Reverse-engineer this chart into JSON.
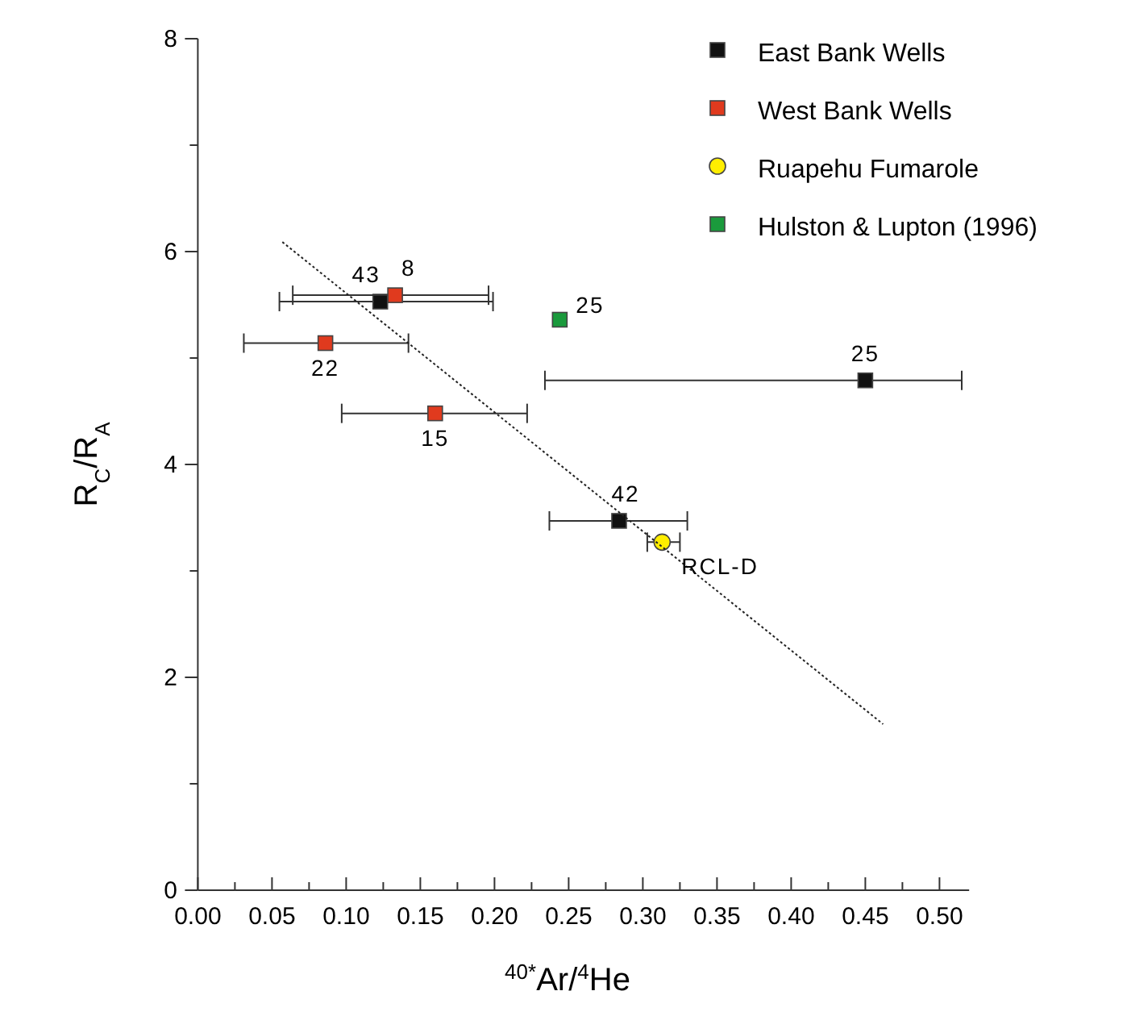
{
  "chart_data": {
    "type": "scatter",
    "xlabel": "$^{40*}$Ar/$^{4}$He",
    "ylabel": "R$_{C}$/R$_{A}$",
    "xlim": [
      0,
      0.52
    ],
    "ylim": [
      0,
      8
    ],
    "xticks": [
      {
        "value": 0,
        "label": "0.00"
      },
      {
        "value": 0.025,
        "label": null
      },
      {
        "value": 0.05,
        "label": "0.05"
      },
      {
        "value": 0.075,
        "label": null
      },
      {
        "value": 0.1,
        "label": "0.10"
      },
      {
        "value": 0.125,
        "label": null
      },
      {
        "value": 0.15,
        "label": "0.15"
      },
      {
        "value": 0.175,
        "label": null
      },
      {
        "value": 0.2,
        "label": "0.20"
      },
      {
        "value": 0.225,
        "label": null
      },
      {
        "value": 0.25,
        "label": "0.25"
      },
      {
        "value": 0.275,
        "label": null
      },
      {
        "value": 0.3,
        "label": "0.30"
      },
      {
        "value": 0.325,
        "label": null
      },
      {
        "value": 0.35,
        "label": "0.35"
      },
      {
        "value": 0.375,
        "label": null
      },
      {
        "value": 0.4,
        "label": "0.40"
      },
      {
        "value": 0.425,
        "label": null
      },
      {
        "value": 0.45,
        "label": "0.45"
      },
      {
        "value": 0.475,
        "label": null
      },
      {
        "value": 0.5,
        "label": "0.50"
      }
    ],
    "yticks": [
      0,
      {
        "value": 1,
        "label": null
      },
      2,
      {
        "value": 3,
        "label": null
      },
      4,
      {
        "value": 5,
        "label": null
      },
      6,
      {
        "value": 7,
        "label": null
      },
      8
    ],
    "legend": "top right",
    "grid": false,
    "series": [
      {
        "name": "East Bank Wells",
        "color": "#111111",
        "marker": "square",
        "x": [
          0.123,
          0.45,
          0.284
        ],
        "values": [
          5.53,
          4.79,
          3.47
        ],
        "xerrors": [
          [
            0.055,
            0.199
          ],
          [
            0.234,
            0.515
          ],
          [
            0.237,
            0.33
          ]
        ]
      },
      {
        "name": "West Bank Wells",
        "color": "#e03a1e",
        "marker": "square",
        "x": [
          0.133,
          0.086,
          0.16
        ],
        "values": [
          5.59,
          5.14,
          4.48
        ],
        "xerrors": [
          [
            0.064,
            0.196
          ],
          [
            0.031,
            0.142
          ],
          [
            0.097,
            0.222
          ]
        ]
      },
      {
        "name": "Ruapehu Fumarole",
        "color": "#ffee00",
        "marker": "circle",
        "x": [
          0.313
        ],
        "values": [
          3.27
        ],
        "xerrors": [
          [
            0.303,
            0.325
          ]
        ]
      },
      {
        "name": "Hulston & Lupton (1996)",
        "color": "#1a9a3c",
        "marker": "square",
        "x": [
          0.244
        ],
        "values": [
          5.36
        ]
      },
      {
        "type": "line",
        "color": "#222222",
        "line_style": "dotted",
        "marker": "none",
        "x": [
          0.057,
          0.462
        ],
        "values": [
          6.09,
          1.56
        ]
      }
    ],
    "annotations": [
      {
        "text": "43",
        "x": 0.123,
        "y": 5.53
      },
      {
        "text": "8",
        "x": 0.133,
        "y": 5.59
      },
      {
        "text": "22",
        "x": 0.086,
        "y": 5.14
      },
      {
        "text": "15",
        "x": 0.16,
        "y": 4.48
      },
      {
        "text": "25",
        "x": 0.244,
        "y": 5.36
      },
      {
        "text": "25",
        "x": 0.45,
        "y": 4.79
      },
      {
        "text": "42",
        "x": 0.284,
        "y": 3.47
      },
      {
        "text": "RCL-D",
        "x": 0.313,
        "y": 3.27
      }
    ]
  }
}
